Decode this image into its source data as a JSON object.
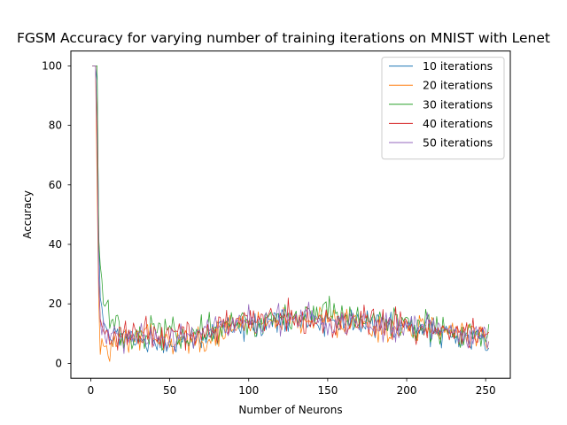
{
  "chart_data": {
    "type": "line",
    "title": "FGSM Accuracy for varying number of training iterations on MNIST with Lenet",
    "xlabel": "Number of Neurons",
    "ylabel": "Accuracy",
    "xlim": [
      -12.6,
      265.6
    ],
    "ylim": [
      -5,
      105
    ],
    "x_ticks": [
      0,
      50,
      100,
      150,
      200,
      250
    ],
    "y_ticks": [
      0,
      20,
      40,
      60,
      80,
      100
    ],
    "x_range": [
      1,
      252
    ],
    "grid": false,
    "legend_position": "top-right",
    "series": [
      {
        "name": "10 iterations",
        "color": "#1f77b4",
        "points": [
          [
            1,
            100
          ],
          [
            3,
            100
          ],
          [
            4,
            95
          ],
          [
            5,
            45
          ],
          [
            6,
            22
          ],
          [
            8,
            14
          ],
          [
            10,
            10
          ],
          [
            15,
            8
          ],
          [
            20,
            9
          ],
          [
            30,
            9
          ],
          [
            40,
            8
          ],
          [
            50,
            6
          ],
          [
            60,
            7
          ],
          [
            70,
            8
          ],
          [
            80,
            10
          ],
          [
            90,
            12
          ],
          [
            100,
            13
          ],
          [
            110,
            14
          ],
          [
            120,
            15
          ],
          [
            130,
            15
          ],
          [
            140,
            14
          ],
          [
            150,
            14
          ],
          [
            160,
            14
          ],
          [
            170,
            13
          ],
          [
            180,
            13
          ],
          [
            190,
            12
          ],
          [
            200,
            12
          ],
          [
            210,
            11
          ],
          [
            220,
            11
          ],
          [
            230,
            10
          ],
          [
            240,
            9
          ],
          [
            252,
            8
          ]
        ],
        "noise": 2.2
      },
      {
        "name": "20 iterations",
        "color": "#ff7f0e",
        "points": [
          [
            1,
            100
          ],
          [
            3,
            100
          ],
          [
            4,
            60
          ],
          [
            5,
            22
          ],
          [
            6,
            3
          ],
          [
            8,
            6
          ],
          [
            10,
            4
          ],
          [
            15,
            7
          ],
          [
            20,
            8
          ],
          [
            30,
            9
          ],
          [
            40,
            9
          ],
          [
            50,
            8
          ],
          [
            60,
            8
          ],
          [
            70,
            9
          ],
          [
            80,
            10
          ],
          [
            90,
            12
          ],
          [
            100,
            13
          ],
          [
            110,
            13
          ],
          [
            120,
            14
          ],
          [
            130,
            14
          ],
          [
            140,
            14
          ],
          [
            150,
            14
          ],
          [
            160,
            13
          ],
          [
            170,
            13
          ],
          [
            180,
            12
          ],
          [
            190,
            12
          ],
          [
            200,
            11
          ],
          [
            210,
            11
          ],
          [
            220,
            10
          ],
          [
            230,
            10
          ],
          [
            240,
            9
          ],
          [
            252,
            9
          ]
        ],
        "noise": 2.4
      },
      {
        "name": "30 iterations",
        "color": "#2ca02c",
        "points": [
          [
            1,
            100
          ],
          [
            3,
            100
          ],
          [
            4,
            100
          ],
          [
            5,
            42
          ],
          [
            6,
            33
          ],
          [
            8,
            20
          ],
          [
            10,
            18
          ],
          [
            15,
            12
          ],
          [
            20,
            10
          ],
          [
            30,
            10
          ],
          [
            40,
            10
          ],
          [
            50,
            10
          ],
          [
            60,
            10
          ],
          [
            70,
            11
          ],
          [
            80,
            12
          ],
          [
            90,
            13
          ],
          [
            100,
            14
          ],
          [
            110,
            15
          ],
          [
            120,
            15
          ],
          [
            130,
            16
          ],
          [
            140,
            16
          ],
          [
            150,
            17
          ],
          [
            160,
            16
          ],
          [
            170,
            15
          ],
          [
            180,
            14
          ],
          [
            190,
            13
          ],
          [
            200,
            13
          ],
          [
            210,
            12
          ],
          [
            220,
            11
          ],
          [
            230,
            10
          ],
          [
            240,
            9
          ],
          [
            252,
            8
          ]
        ],
        "noise": 2.6
      },
      {
        "name": "40 iterations",
        "color": "#d62728",
        "points": [
          [
            1,
            100
          ],
          [
            3,
            100
          ],
          [
            4,
            80
          ],
          [
            5,
            30
          ],
          [
            6,
            15
          ],
          [
            8,
            11
          ],
          [
            10,
            9
          ],
          [
            15,
            9
          ],
          [
            20,
            9
          ],
          [
            30,
            10
          ],
          [
            40,
            10
          ],
          [
            50,
            10
          ],
          [
            60,
            10
          ],
          [
            70,
            11
          ],
          [
            80,
            12
          ],
          [
            90,
            14
          ],
          [
            100,
            16
          ],
          [
            110,
            16
          ],
          [
            120,
            15
          ],
          [
            130,
            15
          ],
          [
            140,
            14
          ],
          [
            150,
            14
          ],
          [
            160,
            14
          ],
          [
            170,
            14
          ],
          [
            180,
            13
          ],
          [
            190,
            13
          ],
          [
            200,
            13
          ],
          [
            210,
            12
          ],
          [
            220,
            11
          ],
          [
            230,
            11
          ],
          [
            240,
            10
          ],
          [
            252,
            9
          ]
        ],
        "noise": 2.5
      },
      {
        "name": "50 iterations",
        "color": "#9467bd",
        "points": [
          [
            1,
            100
          ],
          [
            3,
            100
          ],
          [
            4,
            75
          ],
          [
            5,
            28
          ],
          [
            6,
            14
          ],
          [
            8,
            10
          ],
          [
            10,
            9
          ],
          [
            15,
            9
          ],
          [
            20,
            9
          ],
          [
            30,
            9
          ],
          [
            40,
            9
          ],
          [
            50,
            9
          ],
          [
            60,
            10
          ],
          [
            70,
            11
          ],
          [
            80,
            12
          ],
          [
            90,
            13
          ],
          [
            100,
            14
          ],
          [
            110,
            15
          ],
          [
            120,
            15
          ],
          [
            130,
            15
          ],
          [
            140,
            15
          ],
          [
            150,
            14
          ],
          [
            160,
            14
          ],
          [
            170,
            14
          ],
          [
            180,
            13
          ],
          [
            190,
            13
          ],
          [
            200,
            12
          ],
          [
            210,
            12
          ],
          [
            220,
            12
          ],
          [
            230,
            11
          ],
          [
            240,
            10
          ],
          [
            252,
            9
          ]
        ],
        "noise": 2.3
      }
    ]
  }
}
